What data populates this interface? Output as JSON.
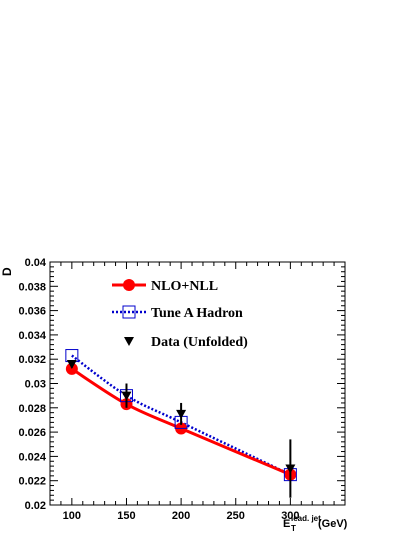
{
  "chart_data": {
    "type": "line",
    "ylabel": "D",
    "xlabel_main": "E",
    "xlabel_sub": "T",
    "xlabel_sup": "lead. jet",
    "xlabel_unit": "(GeV)",
    "xlim": [
      80,
      350
    ],
    "ylim": [
      0.02,
      0.04
    ],
    "x_ticks": [
      100,
      150,
      200,
      250,
      300
    ],
    "y_ticks": [
      0.02,
      0.022,
      0.024,
      0.026,
      0.028,
      0.03,
      0.032,
      0.034,
      0.036,
      0.038,
      0.04
    ],
    "grid": false,
    "legend_position": "top-left",
    "series": [
      {
        "name": "NLO+NLL",
        "color": "#ff0000",
        "style": "solid-line-filled-circle",
        "x": [
          100,
          150,
          200,
          300
        ],
        "y": [
          0.0312,
          0.0283,
          0.0263,
          0.0225
        ]
      },
      {
        "name": "Tune A Hadron",
        "color": "#0000cc",
        "style": "dotted-line-open-square",
        "x": [
          100,
          150,
          200,
          300
        ],
        "y": [
          0.0323,
          0.029,
          0.0268,
          0.0225
        ]
      },
      {
        "name": "Data (Unfolded)",
        "color": "#000000",
        "style": "down-triangle-with-error",
        "x": [
          100,
          150,
          200,
          300
        ],
        "y": [
          0.0316,
          0.029,
          0.0275,
          0.023
        ],
        "err": [
          0.0003,
          0.001,
          0.0009,
          0.0024
        ]
      }
    ]
  }
}
